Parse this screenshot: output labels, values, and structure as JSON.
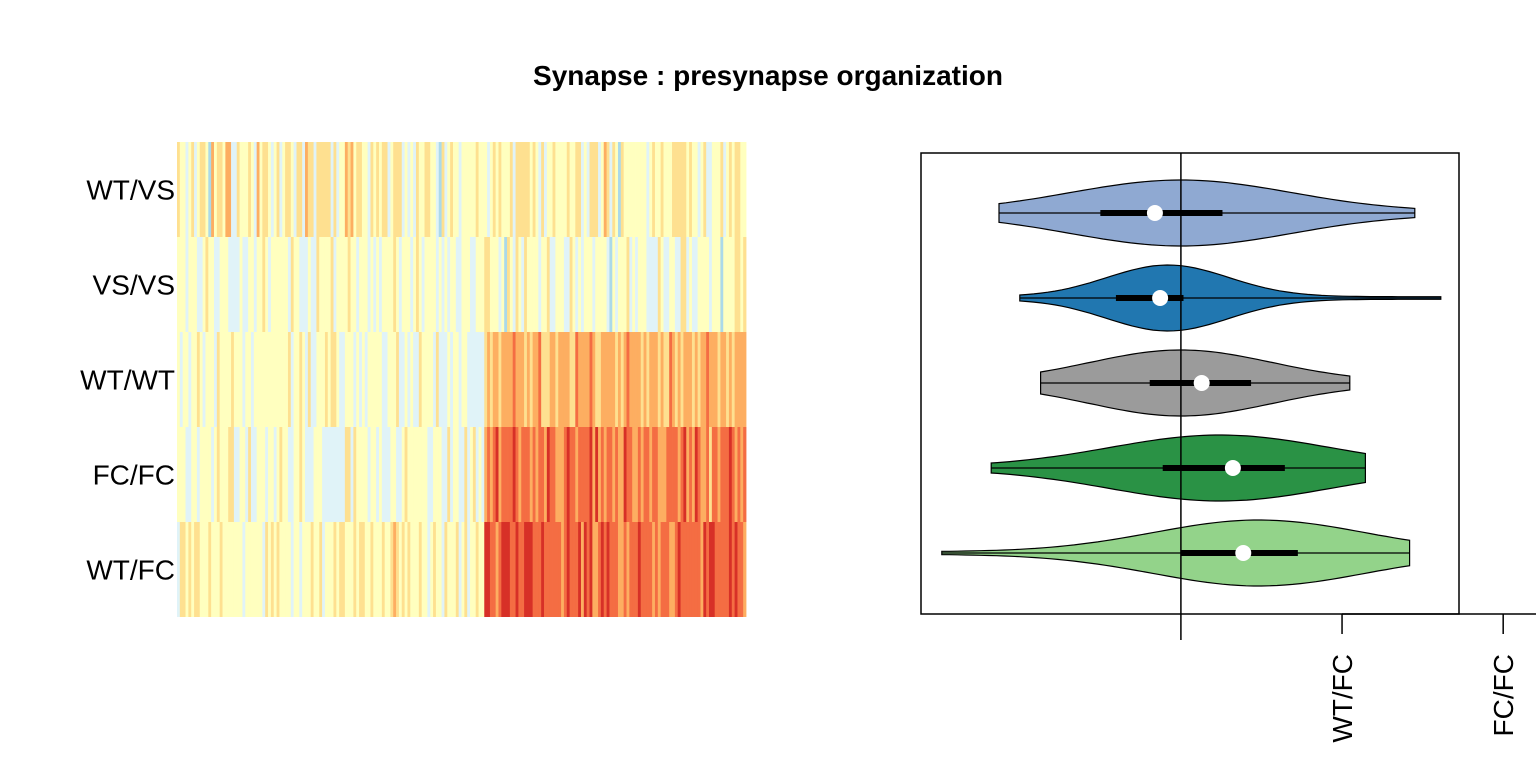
{
  "title": "Synapse : presynapse organization",
  "chart_data": [
    {
      "type": "heatmap",
      "rows": [
        "WT/VS",
        "VS/VS",
        "WT/WT",
        "FC/FC",
        "WT/FC"
      ],
      "colormap": [
        "#4575b4",
        "#74add1",
        "#abd9e9",
        "#e0f3f8",
        "#ffffbf",
        "#fee090",
        "#fdae61",
        "#f46d43",
        "#d73027"
      ],
      "value_range": [
        -1,
        1
      ],
      "n_columns": 200,
      "legend": "none"
    },
    {
      "type": "violin",
      "categories": [
        "WT/VS",
        "VS/VS",
        "WT/WT",
        "FC/FC",
        "WT/FC"
      ],
      "colors": [
        "#8fa9d2",
        "#2177b0",
        "#9b9b9b",
        "#2a9245",
        "#93d38a"
      ],
      "violins": [
        {
          "min": -0.7,
          "q1": -0.31,
          "median": -0.1,
          "q3": 0.16,
          "max": 0.9,
          "peak": 0.0
        },
        {
          "min": -0.62,
          "q1": -0.25,
          "median": -0.08,
          "q3": 0.01,
          "max": 1.0,
          "peak": -0.05
        },
        {
          "min": -0.54,
          "q1": -0.12,
          "median": 0.08,
          "q3": 0.27,
          "max": 0.65,
          "peak": 0.0
        },
        {
          "min": -0.73,
          "q1": -0.07,
          "median": 0.2,
          "q3": 0.4,
          "max": 0.71,
          "peak": 0.15
        },
        {
          "min": -0.92,
          "q1": 0.0,
          "median": 0.24,
          "q3": 0.45,
          "max": 0.88,
          "peak": 0.3
        }
      ],
      "xlim": [
        -1.0,
        1.07
      ],
      "reference_line": 0,
      "axis_tick_labels": [
        {
          "value": 0.62,
          "label": "WT/FC"
        },
        {
          "value": 1.24,
          "label": "FC/FC"
        }
      ]
    }
  ]
}
